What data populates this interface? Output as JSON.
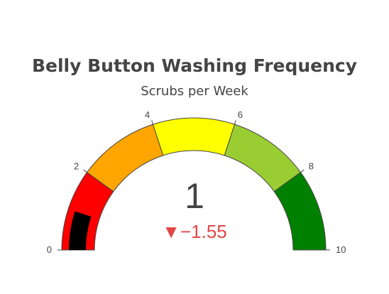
{
  "chart_data": {
    "type": "gauge",
    "title": "Belly Button Washing Frequency",
    "subtitle": "Scrubs per Week",
    "value": 1,
    "delta": "▼−1.55",
    "range": [
      0,
      10
    ],
    "ticks": [
      0,
      2,
      4,
      6,
      8,
      10
    ],
    "tick_labels": [
      "0",
      "2",
      "4",
      "6",
      "8",
      "10"
    ],
    "bands": [
      {
        "from": 0,
        "to": 2,
        "color": "#ff0000"
      },
      {
        "from": 2,
        "to": 4,
        "color": "#ffa500"
      },
      {
        "from": 4,
        "to": 6,
        "color": "#ffff00"
      },
      {
        "from": 6,
        "to": 8,
        "color": "#9acd32"
      },
      {
        "from": 8,
        "to": 10,
        "color": "#008000"
      }
    ],
    "bar_color": "#000000",
    "delta_color": "#e04848"
  }
}
